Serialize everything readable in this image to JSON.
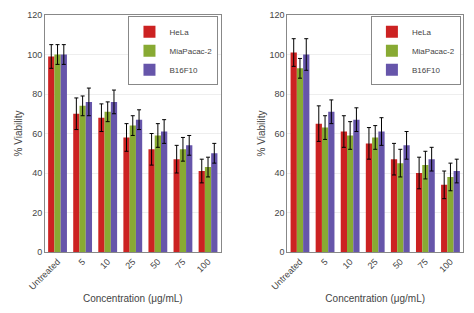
{
  "chart_data": [
    {
      "type": "bar",
      "categories": [
        "Untreated",
        "5",
        "10",
        "25",
        "50",
        "75",
        "100"
      ],
      "series": [
        {
          "name": "HeLa",
          "color": "#cc2222",
          "values": [
            99,
            70,
            68,
            58,
            52,
            47,
            41
          ],
          "errors": [
            6,
            8,
            7,
            7,
            8,
            7,
            6
          ]
        },
        {
          "name": "MiaPacac-2",
          "color": "#88aa33",
          "values": [
            100,
            74,
            71,
            64,
            59,
            52,
            43
          ],
          "errors": [
            5,
            5,
            5,
            5,
            6,
            6,
            5
          ]
        },
        {
          "name": "B16F10",
          "color": "#6655aa",
          "values": [
            100,
            76,
            76,
            67,
            61,
            54,
            50
          ],
          "errors": [
            5,
            7,
            6,
            5,
            6,
            5,
            5
          ]
        }
      ],
      "xlabel": "Concentration (μg/mL)",
      "ylabel": "% Viability",
      "ylim": [
        0,
        120
      ],
      "yticks": [
        0,
        20,
        40,
        60,
        80,
        100,
        120
      ],
      "grid": true,
      "legend": "upper right"
    },
    {
      "type": "bar",
      "categories": [
        "Untreated",
        "5",
        "10",
        "25",
        "50",
        "75",
        "100"
      ],
      "series": [
        {
          "name": "HeLa",
          "color": "#cc2222",
          "values": [
            101,
            65,
            61,
            55,
            47,
            40,
            34
          ],
          "errors": [
            7,
            9,
            8,
            8,
            8,
            8,
            7
          ]
        },
        {
          "name": "MiaPacac-2",
          "color": "#88aa33",
          "values": [
            93,
            63,
            59,
            58,
            45,
            44,
            38
          ],
          "errors": [
            5,
            6,
            7,
            6,
            7,
            7,
            7
          ]
        },
        {
          "name": "B16F10",
          "color": "#6655aa",
          "values": [
            100,
            71,
            67,
            61,
            54,
            47,
            41
          ],
          "errors": [
            8,
            6,
            6,
            7,
            7,
            6,
            6
          ]
        }
      ],
      "xlabel": "Concentration (μg/mL)",
      "ylabel": "% Viability",
      "ylim": [
        0,
        120
      ],
      "yticks": [
        0,
        20,
        40,
        60,
        80,
        100,
        120
      ],
      "grid": true,
      "legend": "upper right"
    }
  ]
}
